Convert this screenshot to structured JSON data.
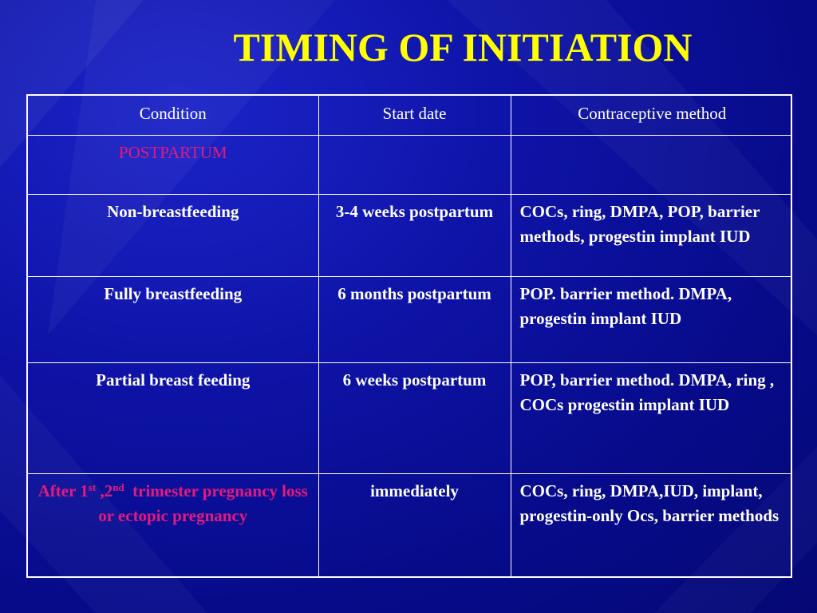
{
  "slide": {
    "title": "TIMING OF INITIATION",
    "colors": {
      "background": "#0a0f9c",
      "title": "#ffff00",
      "text": "#ffffff",
      "highlight": "#e6197f",
      "border": "#ffffff"
    }
  },
  "table": {
    "headers": [
      "Condition",
      "Start date",
      "Contraceptive method"
    ],
    "section_label": "POSTPARTUM",
    "rows": [
      {
        "condition": "Non-breastfeeding",
        "start": "3-4 weeks postpartum",
        "method": "COCs, ring, DMPA, POP, barrier methods, progestin implant IUD"
      },
      {
        "condition": "Fully breastfeeding",
        "start": "6 months postpartum",
        "method": "POP. barrier method. DMPA, progestin implant IUD"
      },
      {
        "condition": "Partial breast feeding",
        "start": "6 weeks postpartum",
        "method": "POP, barrier method. DMPA, ring , COCs progestin implant IUD"
      }
    ],
    "last_row": {
      "condition_part1": "After 1",
      "sup1": "st",
      "condition_part2": " ,2",
      "sup2": "nd",
      "condition_part3": "  trimester pregnancy loss or ectopic pregnancy",
      "start": "immediately",
      "method": "COCs, ring, DMPA,IUD, implant, progestin-only Ocs, barrier methods"
    }
  }
}
